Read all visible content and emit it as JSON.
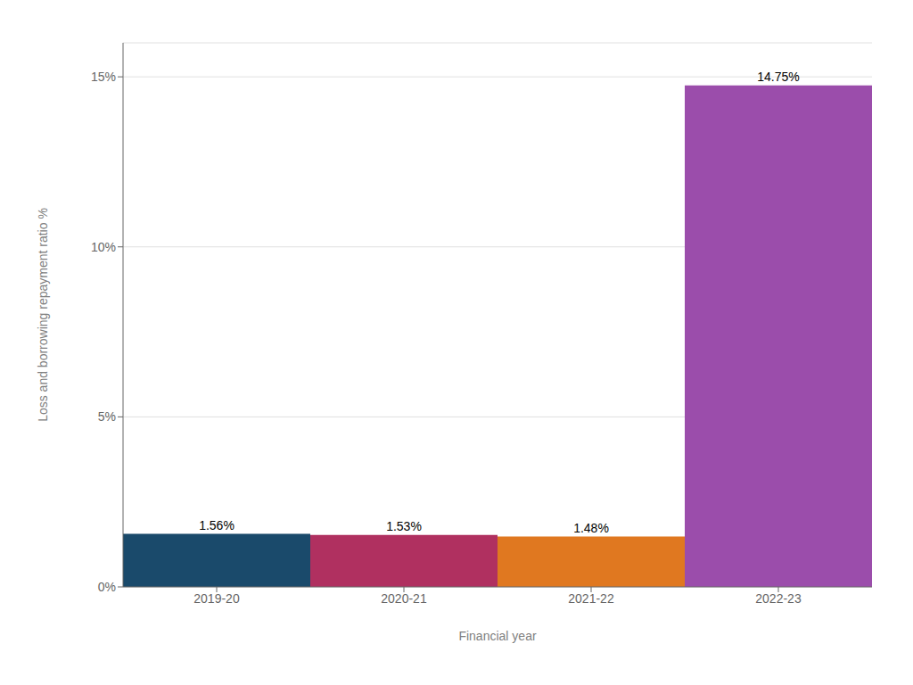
{
  "chart_data": {
    "type": "bar",
    "categories": [
      "2019-20",
      "2020-21",
      "2021-22",
      "2022-23"
    ],
    "values": [
      1.56,
      1.53,
      1.48,
      14.75
    ],
    "value_labels": [
      "1.56%",
      "1.53%",
      "1.48%",
      "14.75%"
    ],
    "data_labels": true,
    "colors": [
      "#1a4a6b",
      "#b03060",
      "#e07820",
      "#9b4dab"
    ],
    "xlabel": "Financial year",
    "ylabel": "Loss and borrowing repayment ratio %",
    "ylim": [
      0,
      16
    ],
    "yticks": [
      {
        "value": 0,
        "label": "0%"
      },
      {
        "value": 5,
        "label": "5%"
      },
      {
        "value": 10,
        "label": "10%"
      },
      {
        "value": 15,
        "label": "15%"
      }
    ],
    "grid": true
  }
}
